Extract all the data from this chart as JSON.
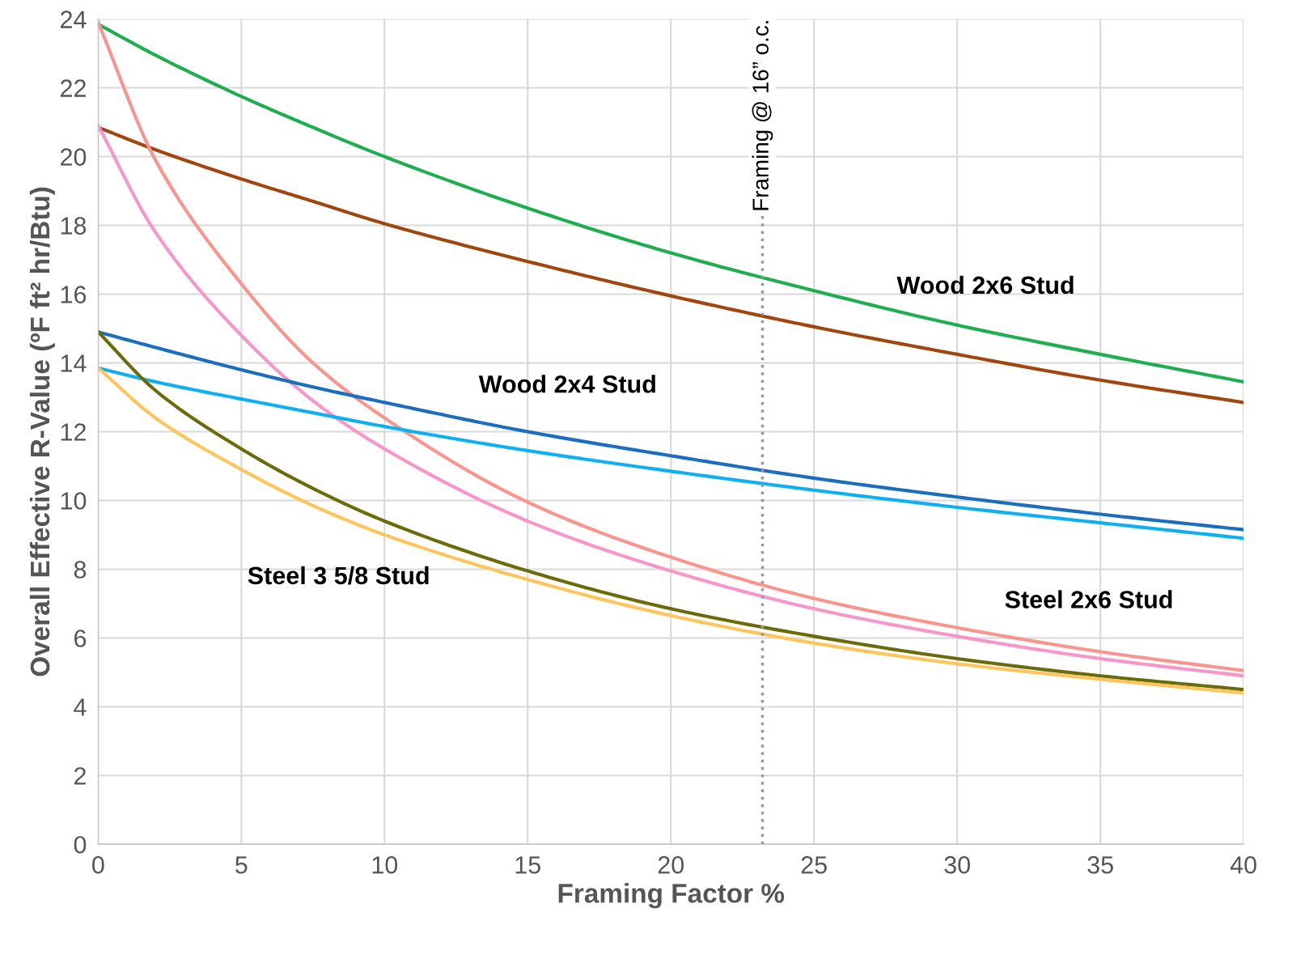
{
  "chart_data": {
    "type": "line",
    "xlabel": "Framing Factor %",
    "ylabel": "Overall Effective R-Value (ºF ft² hr/Btu)",
    "xlim": [
      0,
      40
    ],
    "ylim": [
      0,
      24
    ],
    "xticks": [
      0,
      5,
      10,
      15,
      20,
      25,
      30,
      35,
      40
    ],
    "yticks": [
      0,
      2,
      4,
      6,
      8,
      10,
      12,
      14,
      16,
      18,
      20,
      22,
      24
    ],
    "grid": true,
    "line_style": "solid",
    "marker": "none",
    "x": [
      0,
      2,
      5,
      7.5,
      10,
      15,
      20,
      25,
      30,
      35,
      40
    ],
    "series": [
      {
        "color": "#1fae4f",
        "values": [
          23.85,
          22.95,
          21.75,
          20.85,
          20.0,
          18.5,
          17.2,
          16.1,
          15.1,
          14.25,
          13.45
        ]
      },
      {
        "color": "#a0470f",
        "values": [
          20.85,
          20.2,
          19.35,
          18.7,
          18.05,
          16.95,
          15.95,
          15.05,
          14.25,
          13.5,
          12.85
        ]
      },
      {
        "color": "#f7958e",
        "values": [
          23.9,
          19.9,
          16.3,
          14.0,
          12.4,
          9.95,
          8.35,
          7.15,
          6.3,
          5.6,
          5.05
        ]
      },
      {
        "color": "#f797c9",
        "values": [
          20.9,
          17.8,
          14.8,
          12.9,
          11.5,
          9.4,
          7.95,
          6.85,
          6.05,
          5.4,
          4.9
        ]
      },
      {
        "color": "#1a6ebd",
        "values": [
          14.9,
          14.45,
          13.8,
          13.3,
          12.85,
          12.0,
          11.3,
          10.65,
          10.1,
          9.6,
          9.15
        ]
      },
      {
        "color": "#0fb0f0",
        "values": [
          13.85,
          13.45,
          12.95,
          12.55,
          12.15,
          11.45,
          10.85,
          10.3,
          9.8,
          9.35,
          8.9
        ]
      },
      {
        "color": "#6b6b0c",
        "values": [
          14.9,
          13.2,
          11.5,
          10.35,
          9.4,
          7.95,
          6.85,
          6.05,
          5.4,
          4.9,
          4.5
        ]
      },
      {
        "color": "#fcc65d",
        "values": [
          13.85,
          12.4,
          10.9,
          9.85,
          9.0,
          7.7,
          6.65,
          5.85,
          5.25,
          4.8,
          4.4
        ]
      }
    ],
    "ref_lines": [
      {
        "axis": "x",
        "value": 23.2,
        "label": "Framing @ 16” o.c.",
        "color": "#999999",
        "line_style": "dotted"
      }
    ],
    "annotations": [
      "Wood 2x6 Stud",
      "Wood 2x4 Stud",
      "Steel 3 5/8 Stud",
      "Steel 2x6 Stud"
    ]
  }
}
